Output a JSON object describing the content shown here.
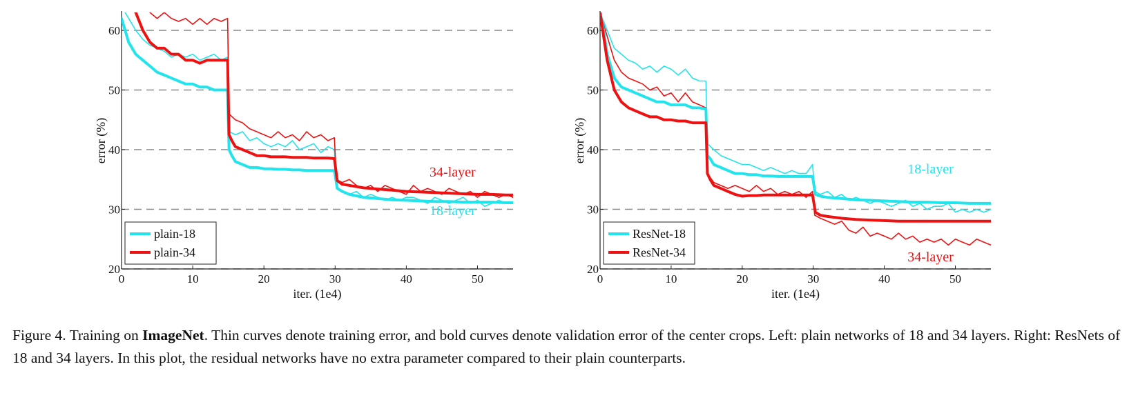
{
  "caption": {
    "prefix": "Figure 4. Training on ",
    "bold": "ImageNet",
    "rest": ". Thin curves denote training error, and bold curves denote validation error of the center crops. Left: plain networks of 18 and 34 layers. Right: ResNets of 18 and 34 layers. In this plot, the residual networks have no extra parameter compared to their plain counterparts."
  },
  "colors": {
    "cyan": "#22e4ec",
    "red": "#ee1111",
    "grid": "#888888"
  },
  "chart_data": [
    {
      "type": "line",
      "name": "left-plain",
      "xlabel": "iter. (1e4)",
      "ylabel": "error (%)",
      "xlim": [
        0,
        55
      ],
      "ylim": [
        20,
        63
      ],
      "xticks": [
        0,
        10,
        20,
        30,
        40,
        50
      ],
      "yticks": [
        20,
        30,
        40,
        50,
        60
      ],
      "grid": "horizontal dashed",
      "legend_position": "bottom-left",
      "legend": [
        "plain-18",
        "plain-34"
      ],
      "annotations": [
        {
          "text": "34-layer",
          "x": 46.5,
          "y": 35.5,
          "color": "red"
        },
        {
          "text": "18-layer",
          "x": 46.5,
          "y": 29.0,
          "color": "cyan"
        }
      ],
      "series": [
        {
          "name": "plain-18 train",
          "color": "cyan",
          "width": "thin",
          "x": [
            0,
            1,
            2,
            3,
            4,
            5,
            6,
            7,
            8,
            9,
            10,
            11,
            12,
            13,
            14,
            14.9,
            15.1,
            16,
            17,
            18,
            19,
            20,
            21,
            22,
            23,
            24,
            25,
            26,
            27,
            28,
            29,
            29.9,
            30.2,
            31,
            32,
            33,
            34,
            35,
            36,
            37,
            38,
            39,
            40,
            41,
            42,
            43,
            44,
            45,
            46,
            47,
            48,
            49,
            50,
            51,
            52,
            53,
            54,
            55
          ],
          "y": [
            64,
            62,
            60,
            58.5,
            57.5,
            57,
            56.5,
            55.5,
            56,
            55.5,
            56,
            55,
            55.5,
            56,
            55,
            55.5,
            43,
            42.5,
            43,
            41.5,
            42,
            41,
            40.5,
            41,
            40.5,
            41.5,
            40,
            40.5,
            41,
            39.5,
            40.5,
            40,
            33.5,
            33,
            32.5,
            33,
            32,
            32.5,
            32,
            31.5,
            32,
            31.5,
            32,
            32,
            31.5,
            31,
            32,
            31.5,
            31,
            31.5,
            32,
            31,
            31.5,
            30.5,
            31,
            31.5,
            31,
            31
          ]
        },
        {
          "name": "plain-34 train",
          "color": "red",
          "width": "thin",
          "x": [
            0,
            2,
            3,
            4,
            5,
            6,
            7,
            8,
            9,
            10,
            11,
            12,
            13,
            14,
            14.9,
            15.1,
            16,
            17,
            18,
            19,
            20,
            21,
            22,
            23,
            24,
            25,
            26,
            27,
            28,
            29,
            29.9,
            30.2,
            31,
            32,
            33,
            34,
            35,
            36,
            37,
            38,
            39,
            40,
            41,
            42,
            43,
            44,
            45,
            46,
            47,
            48,
            49,
            50,
            51,
            52,
            53,
            54,
            55
          ],
          "y": [
            68,
            67,
            65,
            63,
            62,
            63,
            62,
            61.5,
            62,
            61,
            62,
            61,
            62,
            61.5,
            62,
            46,
            45,
            44.5,
            43.5,
            43,
            42.5,
            42,
            43,
            42,
            42.5,
            41.5,
            43,
            42,
            42.5,
            41.5,
            42,
            35,
            34.5,
            35,
            34,
            33.5,
            34,
            33,
            34,
            33.5,
            33,
            32.5,
            34,
            33,
            33.5,
            33,
            32.5,
            33.5,
            33,
            32.5,
            33,
            32,
            33,
            32.5,
            32,
            32.5,
            32
          ]
        },
        {
          "name": "plain-18 val",
          "color": "cyan",
          "width": "bold",
          "x": [
            0,
            0.5,
            1,
            2,
            3,
            4,
            5,
            6,
            7,
            8,
            9,
            10,
            11,
            12,
            13,
            14,
            14.9,
            15.1,
            15.5,
            16,
            17,
            18,
            19,
            20,
            21,
            22,
            23,
            24,
            25,
            26,
            27,
            28,
            29,
            29.9,
            30.3,
            31,
            32,
            34,
            36,
            38,
            40,
            42,
            44,
            46,
            48,
            50,
            52,
            54,
            55
          ],
          "y": [
            62,
            60,
            58,
            56,
            55,
            54,
            53,
            52.5,
            52,
            51.5,
            51,
            51,
            50.5,
            50.5,
            50,
            50,
            50,
            40,
            39,
            38,
            37.5,
            37,
            37,
            36.8,
            36.8,
            36.7,
            36.7,
            36.6,
            36.6,
            36.5,
            36.5,
            36.5,
            36.5,
            36.5,
            33.5,
            33,
            32.5,
            32,
            31.8,
            31.6,
            31.5,
            31.4,
            31.3,
            31.3,
            31.2,
            31.2,
            31.2,
            31.1,
            31.1
          ]
        },
        {
          "name": "plain-34 val",
          "color": "red",
          "width": "bold",
          "x": [
            0,
            2,
            3,
            4,
            5,
            6,
            7,
            8,
            9,
            10,
            11,
            12,
            13,
            14,
            14.9,
            15.1,
            15.5,
            16,
            17,
            18,
            19,
            20,
            21,
            22,
            23,
            24,
            25,
            26,
            27,
            28,
            29,
            29.9,
            30.3,
            31,
            32,
            34,
            36,
            38,
            40,
            42,
            44,
            46,
            48,
            50,
            52,
            54,
            55
          ],
          "y": [
            68,
            63,
            60,
            58,
            57,
            57,
            56,
            56,
            55,
            55,
            54.5,
            55,
            55,
            55,
            55,
            42.5,
            41.5,
            40.5,
            40,
            39.5,
            39,
            39,
            38.8,
            38.8,
            38.8,
            38.7,
            38.7,
            38.7,
            38.6,
            38.6,
            38.6,
            38.5,
            34.8,
            34.2,
            34,
            33.6,
            33.4,
            33.2,
            33,
            32.9,
            32.8,
            32.7,
            32.6,
            32.5,
            32.5,
            32.4,
            32.4
          ]
        }
      ]
    },
    {
      "type": "line",
      "name": "right-resnet",
      "xlabel": "iter. (1e4)",
      "ylabel": "error (%)",
      "xlim": [
        0,
        55
      ],
      "ylim": [
        20,
        63
      ],
      "xticks": [
        0,
        10,
        20,
        30,
        40,
        50
      ],
      "yticks": [
        20,
        30,
        40,
        50,
        60
      ],
      "grid": "horizontal dashed",
      "legend_position": "bottom-left",
      "legend": [
        "ResNet-18",
        "ResNet-34"
      ],
      "annotations": [
        {
          "text": "18-layer",
          "x": 46.5,
          "y": 36.0,
          "color": "cyan"
        },
        {
          "text": "34-layer",
          "x": 46.5,
          "y": 21.3,
          "color": "red"
        }
      ],
      "series": [
        {
          "name": "ResNet-18 train",
          "color": "cyan",
          "width": "thin",
          "x": [
            0,
            1,
            2,
            3,
            4,
            5,
            6,
            7,
            8,
            9,
            10,
            11,
            12,
            13,
            14,
            14.9,
            15.1,
            16,
            17,
            18,
            19,
            20,
            21,
            22,
            23,
            24,
            25,
            26,
            27,
            28,
            29,
            29.9,
            30.2,
            31,
            32,
            33,
            34,
            35,
            36,
            37,
            38,
            39,
            40,
            41,
            42,
            43,
            44,
            45,
            46,
            47,
            48,
            49,
            50,
            51,
            52,
            53,
            54,
            55
          ],
          "y": [
            63,
            60,
            57,
            56,
            55,
            54.5,
            53.5,
            54,
            53,
            54,
            53.5,
            52.5,
            53.5,
            52,
            51.5,
            51.5,
            41,
            40,
            39,
            38.5,
            38,
            37.5,
            37.5,
            37,
            36.5,
            37,
            36.5,
            36,
            36.5,
            36,
            36,
            37.5,
            33,
            32.5,
            33,
            32,
            32.5,
            31.5,
            32,
            31.5,
            31,
            31.5,
            31,
            30.5,
            31,
            31.5,
            30.5,
            31,
            30,
            30.5,
            30.5,
            31,
            29.5,
            30,
            29.5,
            30,
            29.5,
            30
          ]
        },
        {
          "name": "ResNet-34 train",
          "color": "red",
          "width": "thin",
          "x": [
            0,
            1,
            2,
            3,
            4,
            5,
            6,
            7,
            8,
            9,
            10,
            11,
            12,
            13,
            14,
            14.9,
            15.1,
            16,
            17,
            18,
            19,
            20,
            21,
            22,
            23,
            24,
            25,
            26,
            27,
            28,
            29,
            29.9,
            30.2,
            31,
            32,
            33,
            34,
            35,
            36,
            37,
            38,
            39,
            40,
            41,
            42,
            43,
            44,
            45,
            46,
            47,
            48,
            49,
            50,
            51,
            52,
            53,
            54,
            55
          ],
          "y": [
            63,
            59,
            55,
            53,
            52,
            51.5,
            51,
            50,
            50.5,
            49,
            49.5,
            48,
            49.5,
            48,
            47.5,
            47,
            36,
            34.5,
            34,
            33.5,
            34,
            33.5,
            33,
            34,
            33,
            33.5,
            32.5,
            33,
            32.5,
            33,
            32,
            33,
            29,
            28.5,
            28,
            27.5,
            28,
            26.5,
            26,
            27,
            25.5,
            26,
            25.5,
            25,
            26,
            25,
            25.5,
            24.5,
            25,
            24.5,
            25,
            24,
            25,
            24.5,
            24,
            25,
            24.5,
            24
          ]
        },
        {
          "name": "ResNet-18 val",
          "color": "cyan",
          "width": "bold",
          "x": [
            0,
            0.5,
            1,
            2,
            3,
            4,
            5,
            6,
            7,
            8,
            9,
            10,
            11,
            12,
            13,
            14,
            14.9,
            15.1,
            15.5,
            16,
            17,
            18,
            19,
            20,
            21,
            22,
            23,
            24,
            25,
            26,
            27,
            28,
            29,
            29.9,
            30.3,
            31,
            32,
            34,
            36,
            38,
            40,
            42,
            44,
            46,
            48,
            50,
            52,
            54,
            55
          ],
          "y": [
            63,
            60,
            56,
            52,
            50.5,
            50,
            49.5,
            49,
            48.5,
            48,
            48,
            47.5,
            47.5,
            47.5,
            47,
            47,
            46.8,
            39,
            38.5,
            37.5,
            37,
            36.5,
            36,
            36,
            35.8,
            35.8,
            35.6,
            35.6,
            35.5,
            35.5,
            35.5,
            35.5,
            35.5,
            35.5,
            32.5,
            32.2,
            32,
            31.8,
            31.6,
            31.5,
            31.4,
            31.3,
            31.2,
            31.2,
            31.1,
            31.1,
            31,
            31,
            31
          ]
        },
        {
          "name": "ResNet-34 val",
          "color": "red",
          "width": "bold",
          "x": [
            0,
            0.5,
            1,
            2,
            3,
            4,
            5,
            6,
            7,
            8,
            9,
            10,
            11,
            12,
            13,
            14,
            14.9,
            15.1,
            15.5,
            16,
            17,
            18,
            19,
            20,
            21,
            22,
            23,
            24,
            25,
            26,
            27,
            28,
            29,
            29.9,
            30.3,
            31,
            32,
            34,
            36,
            38,
            40,
            42,
            44,
            46,
            48,
            50,
            52,
            54,
            55
          ],
          "y": [
            63,
            59,
            55,
            50,
            48,
            47,
            46.5,
            46,
            45.5,
            45.5,
            45,
            45,
            44.8,
            44.8,
            44.5,
            44.5,
            44.5,
            36,
            35,
            34,
            33.5,
            33,
            32.5,
            32.2,
            32.3,
            32.3,
            32.4,
            32.4,
            32.4,
            32.4,
            32.4,
            32.4,
            32.4,
            32.4,
            29.5,
            29,
            28.8,
            28.5,
            28.3,
            28.2,
            28.1,
            28,
            28,
            28,
            28,
            28,
            28,
            28,
            28
          ]
        }
      ]
    }
  ]
}
